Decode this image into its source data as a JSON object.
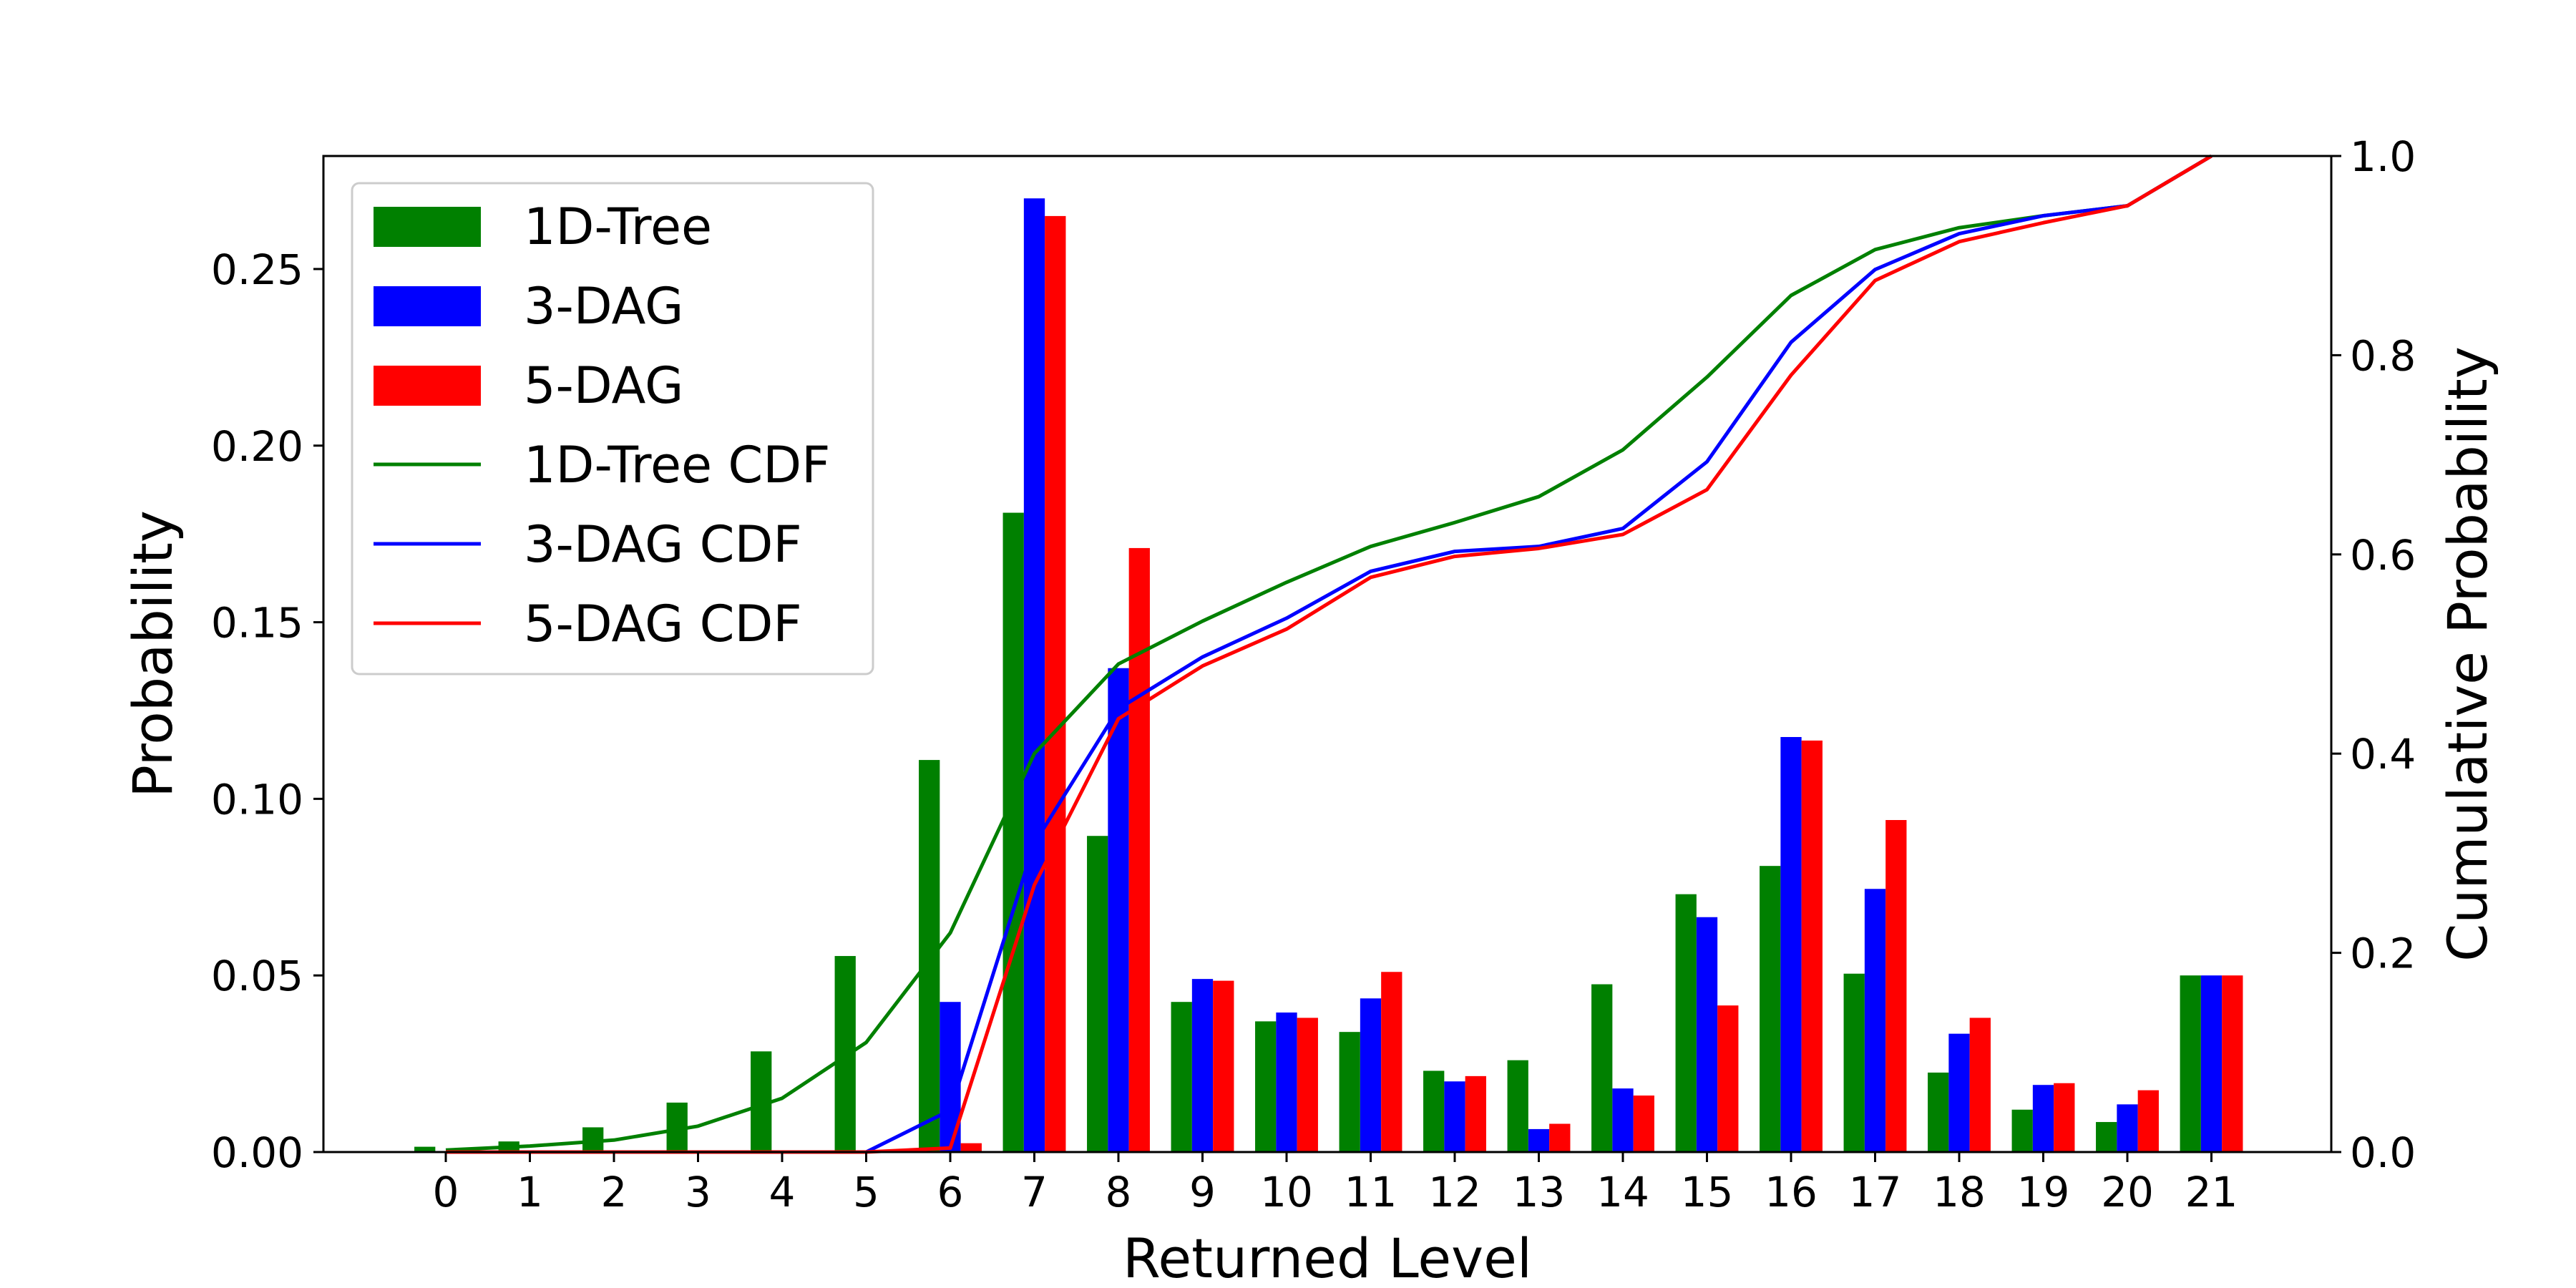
{
  "chart_data": {
    "type": "bar",
    "xlabel": "Returned Level",
    "ylabel": "Probability",
    "y2label": "Cumulative Probability",
    "categories": [
      "0",
      "1",
      "2",
      "3",
      "4",
      "5",
      "6",
      "7",
      "8",
      "9",
      "10",
      "11",
      "12",
      "13",
      "14",
      "15",
      "16",
      "17",
      "18",
      "19",
      "20",
      "21"
    ],
    "ylim": [
      0,
      0.282
    ],
    "y2lim": [
      0,
      1.0
    ],
    "yticks": [
      "0.00",
      "0.05",
      "0.10",
      "0.15",
      "0.20",
      "0.25"
    ],
    "y2ticks": [
      "0.0",
      "0.2",
      "0.4",
      "0.6",
      "0.8",
      "1.0"
    ],
    "grid": false,
    "legend_position": "top-left",
    "series": [
      {
        "name": "1D-Tree",
        "kind": "bar",
        "color": "#008000",
        "values": [
          0.0015,
          0.003,
          0.007,
          0.014,
          0.0285,
          0.0555,
          0.111,
          0.181,
          0.0895,
          0.0425,
          0.037,
          0.034,
          0.023,
          0.026,
          0.0475,
          0.073,
          0.081,
          0.0505,
          0.0225,
          0.012,
          0.0085,
          0.05
        ]
      },
      {
        "name": "3-DAG",
        "kind": "bar",
        "color": "#0000ff",
        "values": [
          0,
          0,
          0,
          0,
          0,
          0,
          0.0425,
          0.27,
          0.137,
          0.049,
          0.0395,
          0.0435,
          0.02,
          0.0065,
          0.018,
          0.0665,
          0.1175,
          0.0745,
          0.0335,
          0.019,
          0.0135,
          0.05
        ]
      },
      {
        "name": "5-DAG",
        "kind": "bar",
        "color": "#ff0000",
        "values": [
          0,
          0,
          0,
          0,
          0,
          0,
          0.0025,
          0.265,
          0.171,
          0.0485,
          0.038,
          0.051,
          0.0215,
          0.008,
          0.016,
          0.0415,
          0.1165,
          0.094,
          0.038,
          0.0195,
          0.0175,
          0.05
        ]
      },
      {
        "name": "1D-Tree CDF",
        "kind": "line",
        "axis": "right",
        "color": "#008000",
        "values": [
          0.002,
          0.006,
          0.012,
          0.026,
          0.054,
          0.11,
          0.22,
          0.4,
          0.49,
          0.533,
          0.572,
          0.608,
          0.632,
          0.658,
          0.705,
          0.778,
          0.86,
          0.906,
          0.928,
          0.94,
          0.95,
          1.0
        ]
      },
      {
        "name": "3-DAG CDF",
        "kind": "line",
        "axis": "right",
        "color": "#0000ff",
        "values": [
          0,
          0,
          0,
          0,
          0,
          0,
          0.042,
          0.31,
          0.445,
          0.497,
          0.536,
          0.583,
          0.603,
          0.608,
          0.626,
          0.693,
          0.813,
          0.886,
          0.922,
          0.94,
          0.95,
          1.0
        ]
      },
      {
        "name": "5-DAG CDF",
        "kind": "line",
        "axis": "right",
        "color": "#ff0000",
        "values": [
          0,
          0,
          0,
          0,
          0,
          0,
          0.004,
          0.268,
          0.435,
          0.488,
          0.525,
          0.577,
          0.598,
          0.606,
          0.62,
          0.665,
          0.78,
          0.875,
          0.914,
          0.933,
          0.95,
          1.0
        ]
      }
    ]
  }
}
